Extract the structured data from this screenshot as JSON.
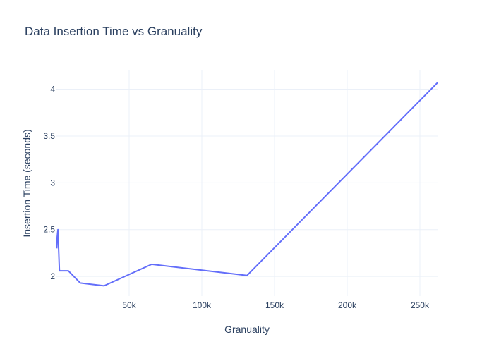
{
  "chart_data": {
    "type": "line",
    "title": "Data Insertion Time vs Granuality",
    "xlabel": "Granuality",
    "ylabel": "Insertion Time (seconds)",
    "xlim": [
      0,
      262144
    ],
    "ylim": [
      1.79,
      4.2
    ],
    "grid": true,
    "x_ticks": [
      50000,
      100000,
      150000,
      200000,
      250000
    ],
    "x_tick_labels": [
      "50k",
      "100k",
      "150k",
      "200k",
      "250k"
    ],
    "y_ticks": [
      2,
      2.5,
      3,
      3.5,
      4
    ],
    "y_tick_labels": [
      "2",
      "2.5",
      "3",
      "3.5",
      "4"
    ],
    "series": [
      {
        "color": "#636efa",
        "x": [
          256,
          512,
          1024,
          2048,
          4096,
          8192,
          16384,
          32768,
          65536,
          131072,
          262144
        ],
        "y": [
          2.3,
          2.42,
          2.5,
          2.06,
          2.06,
          2.06,
          1.93,
          1.9,
          2.13,
          2.01,
          4.07
        ]
      }
    ]
  }
}
